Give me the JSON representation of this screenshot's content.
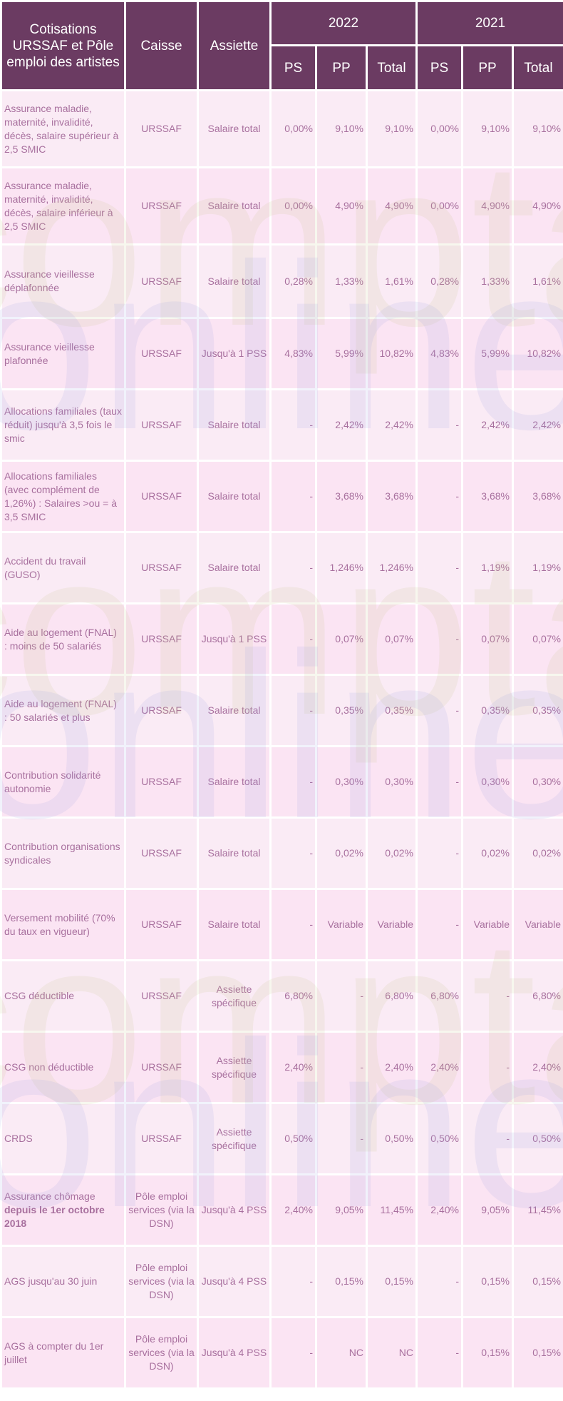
{
  "header": {
    "col_cotisations": "Cotisations URSSAF et Pôle emploi des artistes",
    "col_caisse": "Caisse",
    "col_assiette": "Assiette",
    "year_a": "2022",
    "year_b": "2021",
    "sub_ps": "PS",
    "sub_pp": "PP",
    "sub_total": "Total"
  },
  "watermark": {
    "line1": "compta",
    "line2": "online"
  },
  "rows": [
    {
      "label": "Assurance maladie, maternité, invalidité, décès, salaire supérieur à 2,5 SMIC",
      "caisse": "URSSAF",
      "assiette": "Salaire total",
      "y2022": {
        "ps": "0,00%",
        "pp": "9,10%",
        "total": "9,10%"
      },
      "y2021": {
        "ps": "0,00%",
        "pp": "9,10%",
        "total": "9,10%"
      }
    },
    {
      "label": "Assurance maladie, maternité, invalidité, décès, salaire inférieur à 2,5 SMIC",
      "caisse": "URSSAF",
      "assiette": "Salaire total",
      "y2022": {
        "ps": "0,00%",
        "pp": "4,90%",
        "total": "4,90%"
      },
      "y2021": {
        "ps": "0,00%",
        "pp": "4,90%",
        "total": "4,90%"
      }
    },
    {
      "label": "Assurance vieillesse déplafonnée",
      "caisse": "URSSAF",
      "assiette": "Salaire total",
      "y2022": {
        "ps": "0,28%",
        "pp": "1,33%",
        "total": "1,61%"
      },
      "y2021": {
        "ps": "0,28%",
        "pp": "1,33%",
        "total": "1,61%"
      }
    },
    {
      "label": "Assurance vieillesse plafonnée",
      "caisse": "URSSAF",
      "assiette": "Jusqu'à 1 PSS",
      "y2022": {
        "ps": "4,83%",
        "pp": "5,99%",
        "total": "10,82%"
      },
      "y2021": {
        "ps": "4,83%",
        "pp": "5,99%",
        "total": "10,82%"
      }
    },
    {
      "label": "Allocations familiales (taux réduit) jusqu'à 3,5 fois le smic",
      "caisse": "URSSAF",
      "assiette": "Salaire total",
      "y2022": {
        "ps": "-",
        "pp": "2,42%",
        "total": "2,42%"
      },
      "y2021": {
        "ps": "-",
        "pp": "2,42%",
        "total": "2,42%"
      }
    },
    {
      "label": "Allocations familiales (avec complément de 1,26%) : Salaires >ou = à 3,5 SMIC",
      "caisse": "URSSAF",
      "assiette": "Salaire total",
      "y2022": {
        "ps": "-",
        "pp": "3,68%",
        "total": "3,68%"
      },
      "y2021": {
        "ps": "-",
        "pp": "3,68%",
        "total": "3,68%"
      }
    },
    {
      "label": "Accident du travail (GUSO)",
      "caisse": "URSSAF",
      "assiette": "Salaire total",
      "y2022": {
        "ps": "-",
        "pp": "1,246%",
        "total": "1,246%"
      },
      "y2021": {
        "ps": "-",
        "pp": "1,19%",
        "total": "1,19%"
      }
    },
    {
      "label": "Aide au logement (FNAL) : moins de 50 salariés",
      "caisse": "URSSAF",
      "assiette": "Jusqu'à 1 PSS",
      "y2022": {
        "ps": "-",
        "pp": "0,07%",
        "total": "0,07%"
      },
      "y2021": {
        "ps": "-",
        "pp": "0,07%",
        "total": "0,07%"
      }
    },
    {
      "label": "Aide au logement (FNAL) : 50 salariés et plus",
      "caisse": "URSSAF",
      "assiette": "Salaire total",
      "y2022": {
        "ps": "-",
        "pp": "0,35%",
        "total": "0,35%"
      },
      "y2021": {
        "ps": "-",
        "pp": "0,35%",
        "total": "0,35%"
      }
    },
    {
      "label": "Contribution solidarité autonomie",
      "caisse": "URSSAF",
      "assiette": "Salaire total",
      "y2022": {
        "ps": "-",
        "pp": "0,30%",
        "total": "0,30%"
      },
      "y2021": {
        "ps": "-",
        "pp": "0,30%",
        "total": "0,30%"
      }
    },
    {
      "label": "Contribution organisations syndicales",
      "caisse": "URSSAF",
      "assiette": "Salaire total",
      "y2022": {
        "ps": "-",
        "pp": "0,02%",
        "total": "0,02%"
      },
      "y2021": {
        "ps": "-",
        "pp": "0,02%",
        "total": "0,02%"
      }
    },
    {
      "label": "Versement mobilité (70% du taux en vigueur)",
      "caisse": "URSSAF",
      "assiette": "Salaire total",
      "y2022": {
        "ps": "-",
        "pp": "Variable",
        "total": "Variable"
      },
      "y2021": {
        "ps": "-",
        "pp": "Variable",
        "total": "Variable"
      }
    },
    {
      "label": "CSG déductible",
      "caisse": "URSSAF",
      "assiette": "Assiette spécifique",
      "y2022": {
        "ps": "6,80%",
        "pp": "-",
        "total": "6,80%"
      },
      "y2021": {
        "ps": "6,80%",
        "pp": "-",
        "total": "6,80%"
      }
    },
    {
      "label": "CSG non déductible",
      "caisse": "URSSAF",
      "assiette": "Assiette spécifique",
      "y2022": {
        "ps": "2,40%",
        "pp": "-",
        "total": "2,40%"
      },
      "y2021": {
        "ps": "2,40%",
        "pp": "-",
        "total": "2,40%"
      }
    },
    {
      "label": "CRDS",
      "caisse": "URSSAF",
      "assiette": "Assiette spécifique",
      "y2022": {
        "ps": "0,50%",
        "pp": "-",
        "total": "0,50%"
      },
      "y2021": {
        "ps": "0,50%",
        "pp": "-",
        "total": "0,50%"
      }
    },
    {
      "label": "Assurance chômage",
      "label_bold": "depuis le 1er octobre 2018",
      "caisse": "Pôle emploi services (via la DSN)",
      "assiette": "Jusqu'à 4 PSS",
      "y2022": {
        "ps": "2,40%",
        "pp": "9,05%",
        "total": "11,45%"
      },
      "y2021": {
        "ps": "2,40%",
        "pp": "9,05%",
        "total": "11,45%"
      }
    },
    {
      "label": "AGS jusqu'au 30 juin",
      "caisse": "Pôle emploi services (via la DSN)",
      "assiette": "Jusqu'à 4 PSS",
      "y2022": {
        "ps": "-",
        "pp": "0,15%",
        "total": "0,15%"
      },
      "y2021": {
        "ps": "-",
        "pp": "0,15%",
        "total": "0,15%"
      }
    },
    {
      "label": "AGS à compter du 1er juillet",
      "caisse": "Pôle emploi services (via la DSN)",
      "assiette": "Jusqu'à 4 PSS",
      "y2022": {
        "ps": "-",
        "pp": "NC",
        "total": "NC"
      },
      "y2021": {
        "ps": "-",
        "pp": "0,15%",
        "total": "0,15%"
      }
    }
  ]
}
